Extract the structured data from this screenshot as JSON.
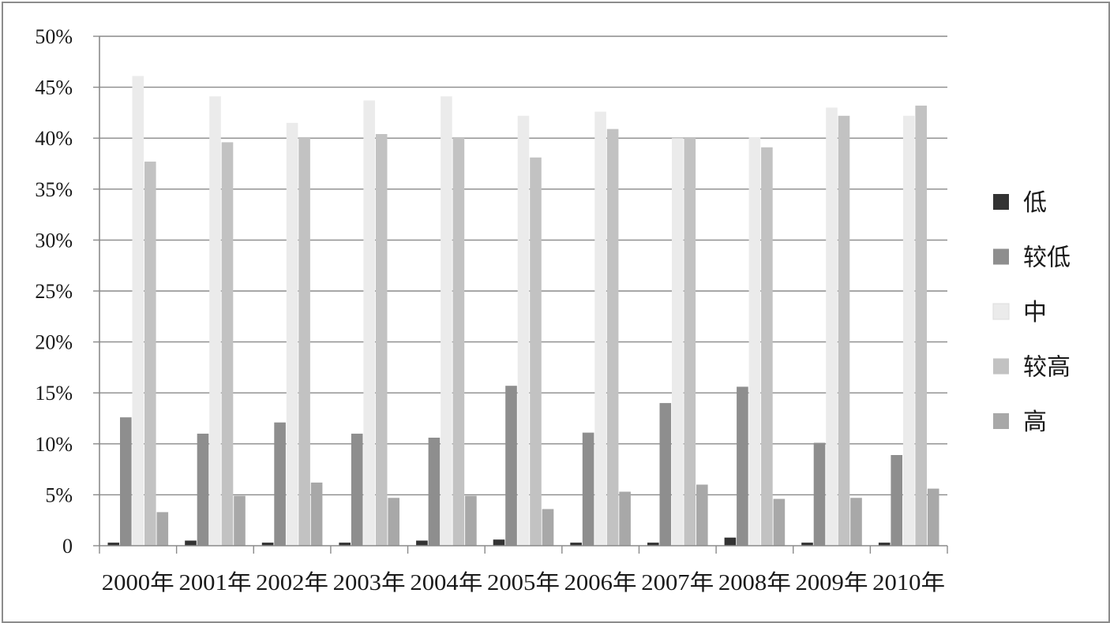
{
  "chart_data": {
    "type": "bar",
    "title": "",
    "xlabel": "",
    "ylabel": "",
    "ylim": [
      0,
      50
    ],
    "yticks": [
      {
        "value": 0,
        "label": "0"
      },
      {
        "value": 5,
        "label": "5%"
      },
      {
        "value": 10,
        "label": "10%"
      },
      {
        "value": 15,
        "label": "15%"
      },
      {
        "value": 20,
        "label": "20%"
      },
      {
        "value": 25,
        "label": "25%"
      },
      {
        "value": 30,
        "label": "30%"
      },
      {
        "value": 35,
        "label": "35%"
      },
      {
        "value": 40,
        "label": "40%"
      },
      {
        "value": 45,
        "label": "45%"
      },
      {
        "value": 50,
        "label": "50%"
      }
    ],
    "grid": true,
    "legend_position": "right",
    "categories": [
      "2000年",
      "2001年",
      "2002年",
      "2003年",
      "2004年",
      "2005年",
      "2006年",
      "2007年",
      "2008年",
      "2009年",
      "2010年"
    ],
    "series": [
      {
        "name": "低",
        "color": "#333333",
        "values": [
          0.3,
          0.5,
          0.3,
          0.3,
          0.5,
          0.6,
          0.3,
          0.3,
          0.8,
          0.3,
          0.3
        ]
      },
      {
        "name": "较低",
        "color": "#8e8e8e",
        "values": [
          12.6,
          11.0,
          12.1,
          11.0,
          10.6,
          15.7,
          11.1,
          14.0,
          15.6,
          10.1,
          8.9
        ]
      },
      {
        "name": "中",
        "color": "#ebebeb",
        "values": [
          46.1,
          44.1,
          41.5,
          43.7,
          44.1,
          42.2,
          42.6,
          40.0,
          40.1,
          43.0,
          42.2
        ]
      },
      {
        "name": "较高",
        "color": "#c2c2c2",
        "values": [
          37.7,
          39.6,
          40.1,
          40.4,
          40.1,
          38.1,
          40.9,
          40.1,
          39.1,
          42.2,
          43.2
        ]
      },
      {
        "name": "高",
        "color": "#a8a8a8",
        "values": [
          3.3,
          4.9,
          6.2,
          4.7,
          4.9,
          3.6,
          5.3,
          6.0,
          4.6,
          4.7,
          5.6
        ]
      }
    ]
  }
}
